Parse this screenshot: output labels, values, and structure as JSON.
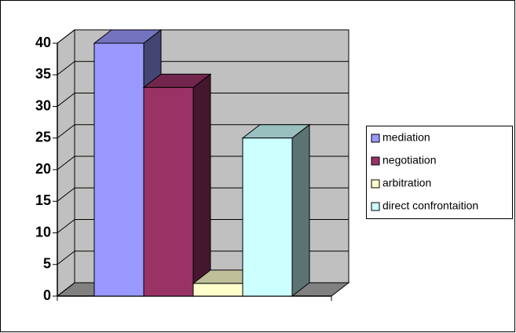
{
  "chart_data": {
    "type": "bar3d",
    "categories": [
      null
    ],
    "series": [
      {
        "name": "mediation",
        "color": "#9999ff",
        "values": [
          40
        ]
      },
      {
        "name": "negotiation",
        "color": "#993366",
        "values": [
          33
        ]
      },
      {
        "name": "arbitration",
        "color": "#ffffcc",
        "values": [
          2
        ]
      },
      {
        "name": "direct confrontaition",
        "color": "#ccffff",
        "values": [
          25
        ]
      }
    ],
    "ylim": [
      0,
      40
    ],
    "yticks": [
      0,
      5,
      10,
      15,
      20,
      25,
      30,
      35,
      40
    ],
    "grid": true,
    "legend": "right"
  }
}
